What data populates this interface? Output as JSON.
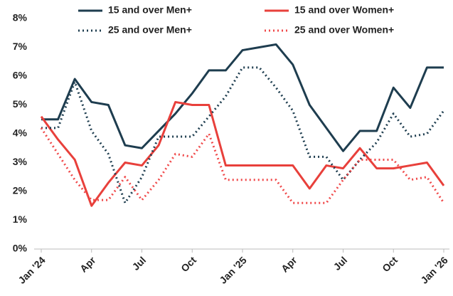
{
  "chart_data": {
    "type": "line",
    "categories": [
      "Jan '24",
      null,
      null,
      "Apr",
      null,
      null,
      "Jul",
      null,
      null,
      "Oct",
      null,
      null,
      "Jan '25",
      null,
      null,
      "Apr",
      null,
      null,
      "Jul",
      null,
      null,
      "Oct",
      null,
      null,
      "Jan '26"
    ],
    "series": [
      {
        "name": "15 and over Men+",
        "color": "#1e3d4f",
        "dash": "solid",
        "values": [
          4.5,
          4.5,
          5.9,
          5.1,
          5.0,
          3.6,
          3.5,
          4.1,
          4.7,
          5.4,
          6.2,
          6.2,
          6.9,
          7.0,
          7.1,
          6.4,
          5.0,
          4.2,
          3.4,
          4.1,
          4.1,
          5.6,
          4.9,
          6.3,
          6.3
        ]
      },
      {
        "name": "15 and over Women+",
        "color": "#e8403b",
        "dash": "solid",
        "values": [
          4.6,
          3.8,
          3.1,
          1.5,
          2.3,
          3.0,
          2.9,
          3.6,
          5.1,
          5.0,
          5.0,
          2.9,
          2.9,
          2.9,
          2.9,
          2.9,
          2.1,
          2.9,
          2.8,
          3.5,
          2.8,
          2.8,
          2.9,
          3.0,
          2.2
        ]
      },
      {
        "name": "25 and over Men+",
        "color": "#1e3d4f",
        "dash": "dotted",
        "values": [
          4.2,
          4.2,
          5.8,
          4.1,
          3.3,
          1.6,
          2.5,
          3.9,
          3.9,
          3.9,
          4.6,
          5.3,
          6.3,
          6.3,
          5.6,
          4.8,
          3.2,
          3.2,
          2.4,
          3.1,
          3.7,
          4.7,
          3.9,
          4.0,
          4.8
        ]
      },
      {
        "name": "25 and over Women+",
        "color": "#f0494a",
        "dash": "dotted",
        "values": [
          4.2,
          3.3,
          2.4,
          1.7,
          1.7,
          2.5,
          1.7,
          2.4,
          3.3,
          3.2,
          4.0,
          2.4,
          2.4,
          2.4,
          2.4,
          1.6,
          1.6,
          1.6,
          2.4,
          3.1,
          3.1,
          3.1,
          2.4,
          2.5,
          1.6
        ]
      }
    ],
    "ylim": [
      0,
      8
    ],
    "yticks": [
      {
        "value": 0,
        "label": "0%"
      },
      {
        "value": 1,
        "label": "1%"
      },
      {
        "value": 2,
        "label": "2%"
      },
      {
        "value": 3,
        "label": "3%"
      },
      {
        "value": 4,
        "label": "4%"
      },
      {
        "value": 5,
        "label": "5%"
      },
      {
        "value": 6,
        "label": "6%"
      },
      {
        "value": 7,
        "label": "7%"
      },
      {
        "value": 8,
        "label": "8%"
      }
    ],
    "grid": false
  }
}
